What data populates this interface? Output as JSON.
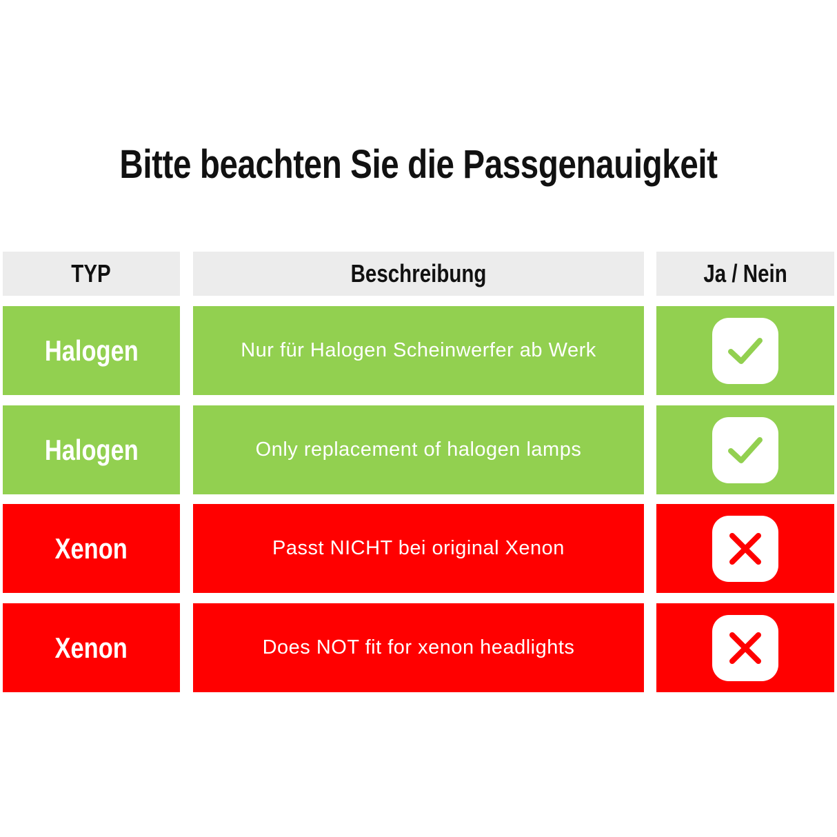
{
  "title": "Bitte beachten Sie die Passgenauigkeit",
  "headers": [
    "TYP",
    "Beschreibung",
    "Ja / Nein"
  ],
  "colors": {
    "green": "#92d050",
    "red": "#ff0000",
    "header": "#ececec"
  },
  "rows": [
    {
      "type": "Halogen",
      "description": "Nur für Halogen Scheinwerfer ab Werk",
      "fit": "yes",
      "icon": "check-icon"
    },
    {
      "type": "Halogen",
      "description": "Only replacement of halogen lamps",
      "fit": "yes",
      "icon": "check-icon"
    },
    {
      "type": "Xenon",
      "description": "Passt NICHT bei original Xenon",
      "fit": "no",
      "icon": "cross-icon"
    },
    {
      "type": "Xenon",
      "description": "Does NOT fit for xenon headlights",
      "fit": "no",
      "icon": "cross-icon"
    }
  ]
}
